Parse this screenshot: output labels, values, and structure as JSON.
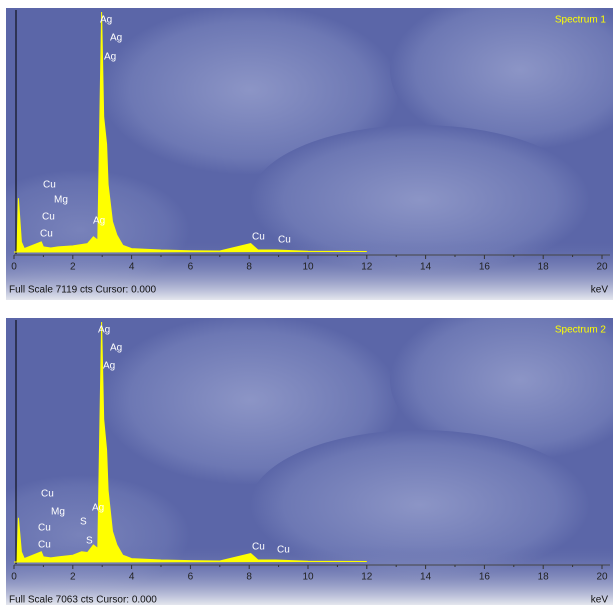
{
  "chart_data": [
    {
      "type": "line",
      "x": [
        0,
        0.1,
        0.15,
        0.25,
        0.35,
        0.5,
        0.93,
        1.0,
        1.25,
        1.5,
        2.0,
        2.5,
        2.7,
        2.85,
        2.98,
        3.05,
        3.15,
        3.2,
        3.35,
        3.5,
        3.7,
        4.0,
        5.0,
        6.0,
        7.0,
        8.05,
        8.3,
        8.9,
        10.0,
        12.0
      ],
      "series": [
        {
          "name": "Spectrum 1",
          "color": "#ffff00",
          "values": [
            0,
            0,
            1600,
            300,
            100,
            150,
            300,
            150,
            120,
            150,
            180,
            250,
            450,
            350,
            7119,
            4000,
            3200,
            2000,
            900,
            500,
            200,
            100,
            60,
            40,
            30,
            250,
            60,
            60,
            25,
            15
          ]
        }
      ],
      "xlim": [
        0,
        20
      ],
      "xticks": [
        0,
        2,
        4,
        6,
        8,
        10,
        12,
        14,
        16,
        18,
        20
      ],
      "ylim": [
        0,
        7119
      ],
      "xlabel": "keV",
      "footer": "Full Scale 7119 cts Cursor: 0.000",
      "annotations": [
        "Ag",
        "Ag",
        "Ag",
        "Cu",
        "Mg",
        "Cu",
        "Ag",
        "Cu",
        "Cu",
        "Cu"
      ]
    },
    {
      "type": "line",
      "x": [
        0,
        0.1,
        0.15,
        0.25,
        0.35,
        0.5,
        0.93,
        1.0,
        1.25,
        1.5,
        2.0,
        2.3,
        2.5,
        2.7,
        2.85,
        2.98,
        3.05,
        3.15,
        3.2,
        3.35,
        3.5,
        3.7,
        4.0,
        5.0,
        6.0,
        7.0,
        8.05,
        8.3,
        8.9,
        10.0,
        12.0
      ],
      "series": [
        {
          "name": "Spectrum 2",
          "color": "#ffff00",
          "values": [
            0,
            0,
            1300,
            300,
            100,
            150,
            300,
            150,
            120,
            150,
            200,
            300,
            280,
            500,
            400,
            7063,
            4200,
            3300,
            2100,
            900,
            500,
            200,
            100,
            60,
            40,
            30,
            250,
            60,
            60,
            25,
            15
          ]
        }
      ],
      "xlim": [
        0,
        20
      ],
      "xticks": [
        0,
        2,
        4,
        6,
        8,
        10,
        12,
        14,
        16,
        18,
        20
      ],
      "ylim": [
        0,
        7063
      ],
      "xlabel": "keV",
      "footer": "Full Scale 7063 cts Cursor: 0.000",
      "annotations": [
        "Ag",
        "Ag",
        "Ag",
        "Cu",
        "Mg",
        "S",
        "Ag",
        "Cu",
        "S",
        "Cu",
        "Cu",
        "Cu"
      ]
    }
  ]
}
